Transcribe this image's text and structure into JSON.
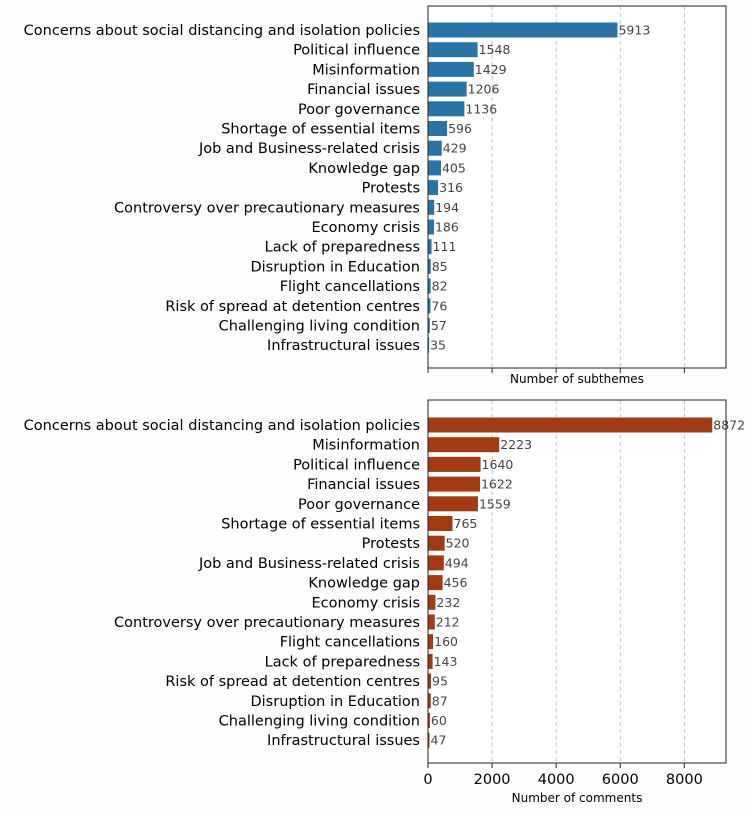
{
  "chart_data": [
    {
      "type": "bar",
      "orientation": "horizontal",
      "categories": [
        "Concerns about social distancing and isolation policies",
        "Political influence",
        "Misinformation",
        "Financial issues",
        "Poor governance",
        "Shortage of essential items",
        "Job and Business-related crisis",
        "Knowledge gap",
        "Protests",
        "Controversy over precautionary measures",
        "Economy crisis",
        "Lack of preparedness",
        "Disruption in Education",
        "Flight cancellations",
        "Risk of spread at detention centres",
        "Challenging living condition",
        "Infrastructural issues"
      ],
      "values": [
        5913,
        1548,
        1429,
        1206,
        1136,
        596,
        429,
        405,
        316,
        194,
        186,
        111,
        85,
        82,
        76,
        57,
        35
      ],
      "value_labels": [
        "5913",
        "1548",
        "1429",
        "1206",
        "1136",
        "596",
        "429",
        "405",
        "316",
        "194",
        "186",
        "111",
        "85",
        "82",
        "76",
        "57",
        "35"
      ],
      "xlabel": "Number of subthemes",
      "xlim": [
        0,
        9300
      ],
      "xticks": [
        0,
        2000,
        4000,
        6000,
        8000
      ],
      "xtick_labels_visible": false,
      "grid": "x dashed",
      "color": "#2874a6"
    },
    {
      "type": "bar",
      "orientation": "horizontal",
      "categories": [
        "Concerns about social distancing and isolation policies",
        "Misinformation",
        "Political influence",
        "Financial issues",
        "Poor governance",
        "Shortage of essential items",
        "Protests",
        "Job and Business-related crisis",
        "Knowledge gap",
        "Economy crisis",
        "Controversy over precautionary measures",
        "Flight cancellations",
        "Lack of preparedness",
        "Risk of spread at detention centres",
        "Disruption in Education",
        "Challenging living condition",
        "Infrastructural issues"
      ],
      "values": [
        8872,
        2223,
        1640,
        1622,
        1559,
        765,
        520,
        494,
        456,
        232,
        212,
        160,
        143,
        95,
        87,
        60,
        47
      ],
      "value_labels": [
        "8872",
        "2223",
        "1640",
        "1622",
        "1559",
        "765",
        "520",
        "494",
        "456",
        "232",
        "212",
        "160",
        "143",
        "95",
        "87",
        "60",
        "47"
      ],
      "xlabel": "Number of comments",
      "xlim": [
        0,
        9300
      ],
      "xticks": [
        0,
        2000,
        4000,
        6000,
        8000
      ],
      "xtick_labels": [
        "0",
        "2000",
        "4000",
        "6000",
        "8000"
      ],
      "xtick_labels_visible": true,
      "grid": "x dashed",
      "color": "#a23a13"
    }
  ]
}
